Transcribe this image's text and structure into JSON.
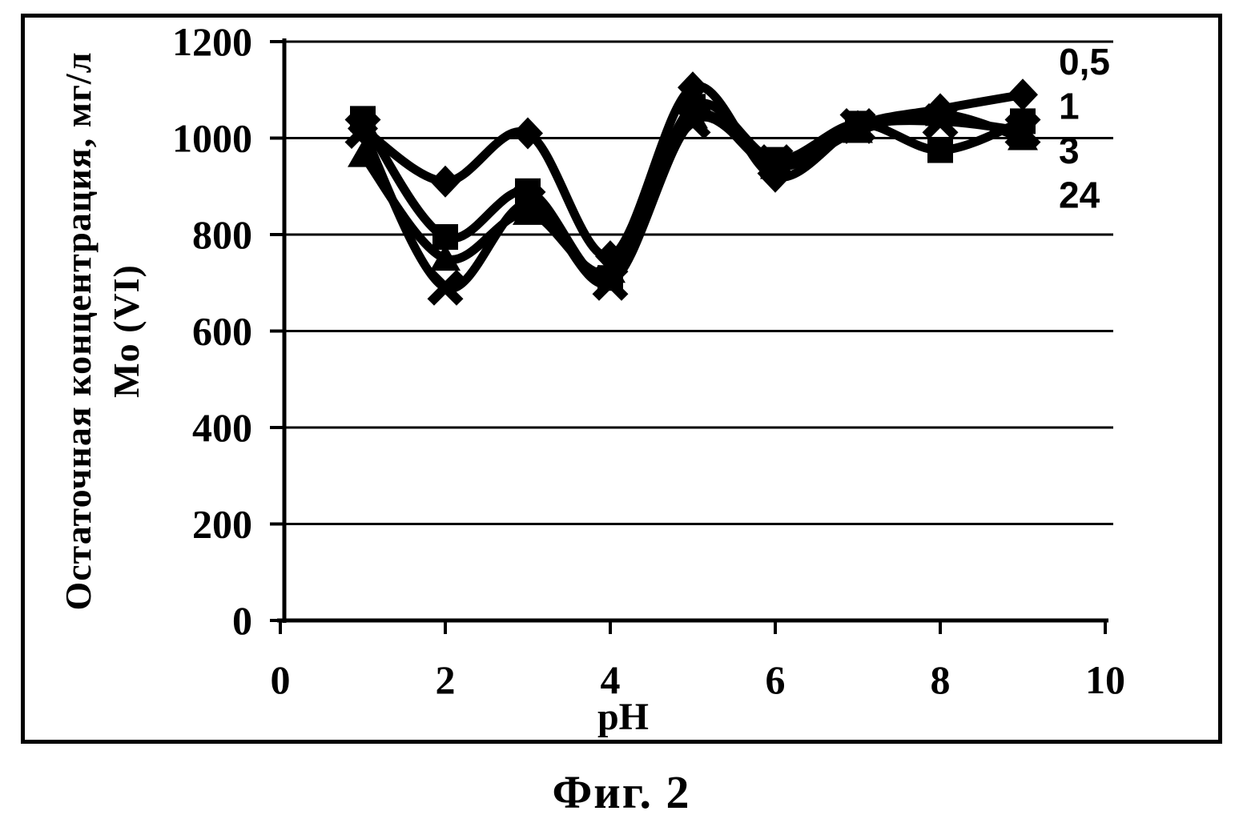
{
  "caption": "Фиг. 2",
  "colors": {
    "ink": "#000000",
    "paper": "#ffffff"
  },
  "chart_data": {
    "type": "line",
    "title": "",
    "xlabel": "pH",
    "ylabel_line1": "Остаточная концентрация, мг/л",
    "ylabel_line2": "Mo (VI)",
    "x": [
      1,
      2,
      3,
      4,
      5,
      6,
      7,
      8,
      9
    ],
    "xlim": [
      0,
      10
    ],
    "ylim": [
      0,
      1200
    ],
    "xticks": [
      0,
      2,
      4,
      6,
      8,
      10
    ],
    "yticks": [
      0,
      200,
      400,
      600,
      800,
      1000,
      1200
    ],
    "grid": "horizontal",
    "legend_position": "right-top",
    "legend_entries": [
      "0,5",
      "1",
      "3",
      "24"
    ],
    "series": [
      {
        "name": "0,5",
        "marker": "diamond",
        "values": [
          1020,
          910,
          1010,
          755,
          1105,
          920,
          1025,
          1060,
          1090
        ]
      },
      {
        "name": "1",
        "marker": "square",
        "values": [
          1040,
          795,
          890,
          710,
          1065,
          955,
          1030,
          975,
          1035
        ]
      },
      {
        "name": "3",
        "marker": "triangle",
        "values": [
          965,
          750,
          845,
          725,
          1045,
          940,
          1015,
          1050,
          1000
        ]
      },
      {
        "name": "24",
        "marker": "x",
        "values": [
          1015,
          690,
          865,
          700,
          1035,
          950,
          1025,
          1035,
          1015
        ]
      }
    ],
    "line_color": "#000000",
    "background": "#ffffff"
  }
}
